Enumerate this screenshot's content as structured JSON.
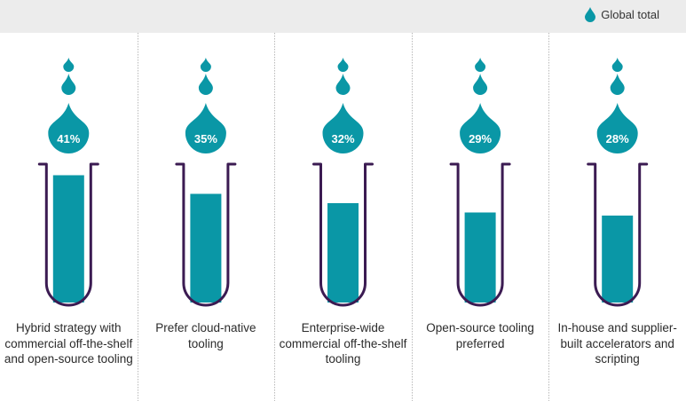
{
  "legend": {
    "label": "Global total",
    "icon": "drop-icon"
  },
  "colors": {
    "teal": "#0a97a6",
    "tube": "#3b1b52",
    "divider": "#b9b9b9",
    "legend_bg": "#ececec"
  },
  "chart_data": {
    "type": "bar",
    "categories": [
      "Hybrid strategy with commercial off-the-shelf and open-source tooling",
      "Prefer cloud-native tooling",
      "Enterprise-wide commercial off-the-shelf tooling",
      "Open-source tooling preferred",
      "In-house and supplier-built accelerators and scripting"
    ],
    "values": [
      41,
      35,
      32,
      29,
      28
    ],
    "labels": [
      "41%",
      "35%",
      "32%",
      "29%",
      "28%"
    ],
    "series": [
      {
        "name": "Global total",
        "values": [
          41,
          35,
          32,
          29,
          28
        ]
      }
    ],
    "unit": "%",
    "legend_position": "top-right"
  }
}
